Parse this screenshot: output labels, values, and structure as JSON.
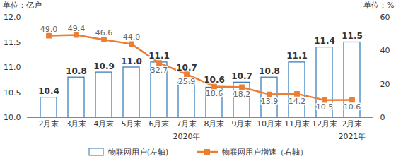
{
  "chart_data": {
    "type": "bar",
    "ylabel": "单位：亿户",
    "y2label": "单位：%",
    "categories": [
      "2月末",
      "3月末",
      "4月末",
      "5月末",
      "6月末",
      "7月末",
      "8月末",
      "9月末",
      "10月末",
      "11月末",
      "12月末",
      "2月末"
    ],
    "groups": [
      {
        "label": "2020年",
        "count": 11
      },
      {
        "label": "2021年",
        "count": 1
      }
    ],
    "series": [
      {
        "name": "物联网用户(左轴)",
        "type": "bar",
        "color": "#2e75b6",
        "values": [
          10.4,
          10.8,
          10.9,
          11.0,
          11.1,
          10.7,
          10.6,
          10.7,
          10.8,
          11.1,
          11.4,
          11.5
        ],
        "value_labels": [
          "10.4",
          "10.8",
          "10.9",
          "11.0",
          "11.1",
          "10.7",
          "10.6",
          "10.7",
          "10.8",
          "11.1",
          "11.4",
          "11.5"
        ]
      },
      {
        "name": "物联网用户增速（右轴）",
        "type": "line",
        "axis": "y2",
        "color": "#ed7d31",
        "marker": "square",
        "values": [
          49.0,
          49.4,
          46.6,
          44.0,
          32.7,
          25.9,
          18.6,
          18.2,
          13.9,
          14.2,
          10.5,
          10.6
        ],
        "value_labels": [
          "49.0",
          "49.4",
          "46.6",
          "44.0",
          "32.7",
          "25.9",
          "18.6",
          "18.2",
          "13.9",
          "14.2",
          "10.5",
          "10.6"
        ]
      }
    ],
    "ylim": [
      10.0,
      12.0
    ],
    "yticks": [
      {
        "value": 10,
        "label": "10.0"
      },
      10.5,
      {
        "value": 11,
        "label": "11.0"
      },
      11.5,
      {
        "value": 12,
        "label": "12.0"
      }
    ],
    "y2lim": [
      0,
      60
    ],
    "y2ticks": [
      0,
      20,
      40,
      60
    ],
    "data_labels": true,
    "legend": "bottom",
    "grid": false
  }
}
